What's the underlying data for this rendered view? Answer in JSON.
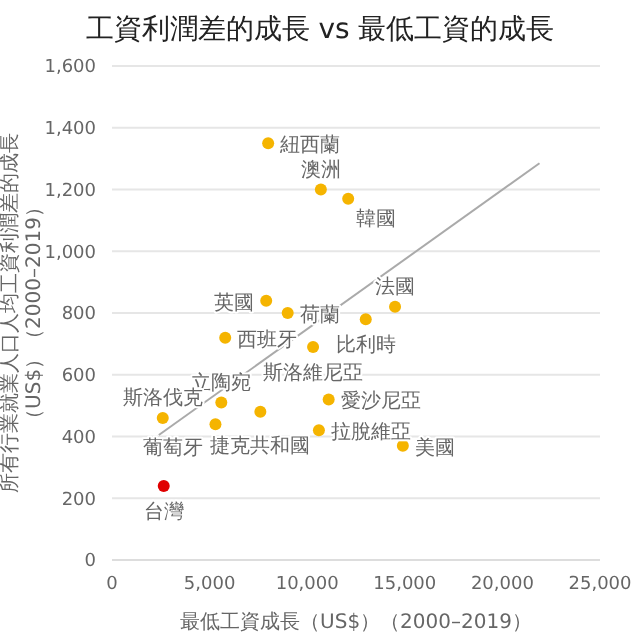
{
  "chart_data": {
    "type": "scatter",
    "title": "工資利潤差的成長 vs 最低工資的成長",
    "xlabel": "最低工資成長（US$）（2000–2019）",
    "ylabel": "所有行業就業人口人均工資利潤差的成長（US$）（2000–2019）",
    "xlim": [
      0,
      25000
    ],
    "xticks": [
      {
        "value": 0,
        "label": "0"
      },
      {
        "value": 5000,
        "label": "5,000"
      },
      {
        "value": 10000,
        "label": "10,000"
      },
      {
        "value": 15000,
        "label": "15,000"
      },
      {
        "value": 20000,
        "label": "20,000"
      },
      {
        "value": 25000,
        "label": "25,000"
      }
    ],
    "ylim": [
      0,
      1600
    ],
    "yticks": [
      {
        "value": 0,
        "label": "0"
      },
      {
        "value": 200,
        "label": "200"
      },
      {
        "value": 400,
        "label": "400"
      },
      {
        "value": 600,
        "label": "600"
      },
      {
        "value": 800,
        "label": "800"
      },
      {
        "value": 1000,
        "label": "1,000"
      },
      {
        "value": 1200,
        "label": "1,200"
      },
      {
        "value": 1400,
        "label": "1,400"
      },
      {
        "value": 1600,
        "label": "1,600"
      }
    ],
    "grid": "y",
    "legend": false,
    "marker": "circle",
    "series": [
      {
        "type": "scatter",
        "x": [
          8000,
          10700,
          12100,
          7900,
          9000,
          5800,
          10300,
          13000,
          14500,
          5600,
          7600,
          11100,
          10600,
          2600,
          5300,
          2650,
          14900
        ],
        "values": [
          1350,
          1200,
          1170,
          840,
          800,
          720,
          690,
          780,
          820,
          510,
          480,
          520,
          420,
          460,
          440,
          240,
          370
        ],
        "colors": [
          "#f5b400",
          "#f5b400",
          "#f5b400",
          "#f5b400",
          "#f5b400",
          "#f5b400",
          "#f5b400",
          "#f5b400",
          "#f5b400",
          "#f5b400",
          "#f5b400",
          "#f5b400",
          "#f5b400",
          "#f5b400",
          "#f5b400",
          "#e00000",
          "#f5b400"
        ]
      },
      {
        "type": "line",
        "x": [
          2400,
          21900
        ],
        "values": [
          405,
          1285
        ],
        "color": "#aaaaaa",
        "marker": "none"
      }
    ],
    "annotations": [
      {
        "text": "紐西蘭",
        "x": 8000,
        "y": 1350
      },
      {
        "text": "澳洲",
        "x": 10700,
        "y": 1200
      },
      {
        "text": "韓國",
        "x": 12100,
        "y": 1170
      },
      {
        "text": "英國",
        "x": 7900,
        "y": 840
      },
      {
        "text": "荷蘭",
        "x": 9000,
        "y": 800
      },
      {
        "text": "西班牙",
        "x": 5800,
        "y": 720
      },
      {
        "text": "斯洛維尼亞",
        "x": 10300,
        "y": 690
      },
      {
        "text": "比利時",
        "x": 13000,
        "y": 780
      },
      {
        "text": "法國",
        "x": 14500,
        "y": 820
      },
      {
        "text": "立陶宛",
        "x": 5600,
        "y": 510
      },
      {
        "text": "捷克共和國",
        "x": 7600,
        "y": 480
      },
      {
        "text": "愛沙尼亞",
        "x": 11100,
        "y": 520
      },
      {
        "text": "拉脫維亞",
        "x": 10600,
        "y": 420
      },
      {
        "text": "斯洛伐克",
        "x": 2600,
        "y": 460
      },
      {
        "text": "葡萄牙",
        "x": 5300,
        "y": 440
      },
      {
        "text": "台灣",
        "x": 2650,
        "y": 240
      },
      {
        "text": "美國",
        "x": 14900,
        "y": 370
      }
    ]
  }
}
